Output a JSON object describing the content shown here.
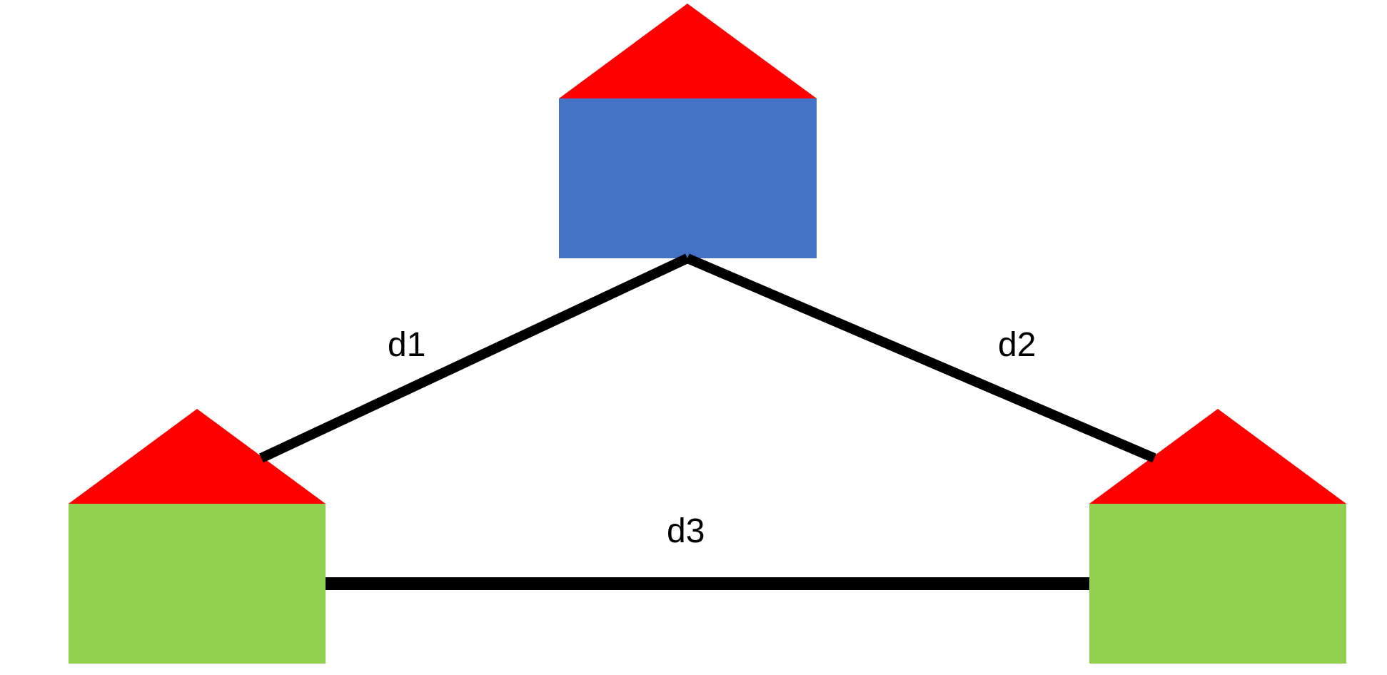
{
  "colors": {
    "roof": "#ff0000",
    "center_house_body": "#4472c4",
    "side_house_body": "#92d050",
    "connector": "#000000",
    "background": "#ffffff"
  },
  "houses": [
    {
      "id": "top-house",
      "body_color_key": "center_house_body"
    },
    {
      "id": "left-house",
      "body_color_key": "side_house_body"
    },
    {
      "id": "right-house",
      "body_color_key": "side_house_body"
    }
  ],
  "connections": [
    {
      "label": "d1",
      "from": "top-house",
      "to": "left-house"
    },
    {
      "label": "d2",
      "from": "top-house",
      "to": "right-house"
    },
    {
      "label": "d3",
      "from": "left-house",
      "to": "right-house"
    }
  ]
}
